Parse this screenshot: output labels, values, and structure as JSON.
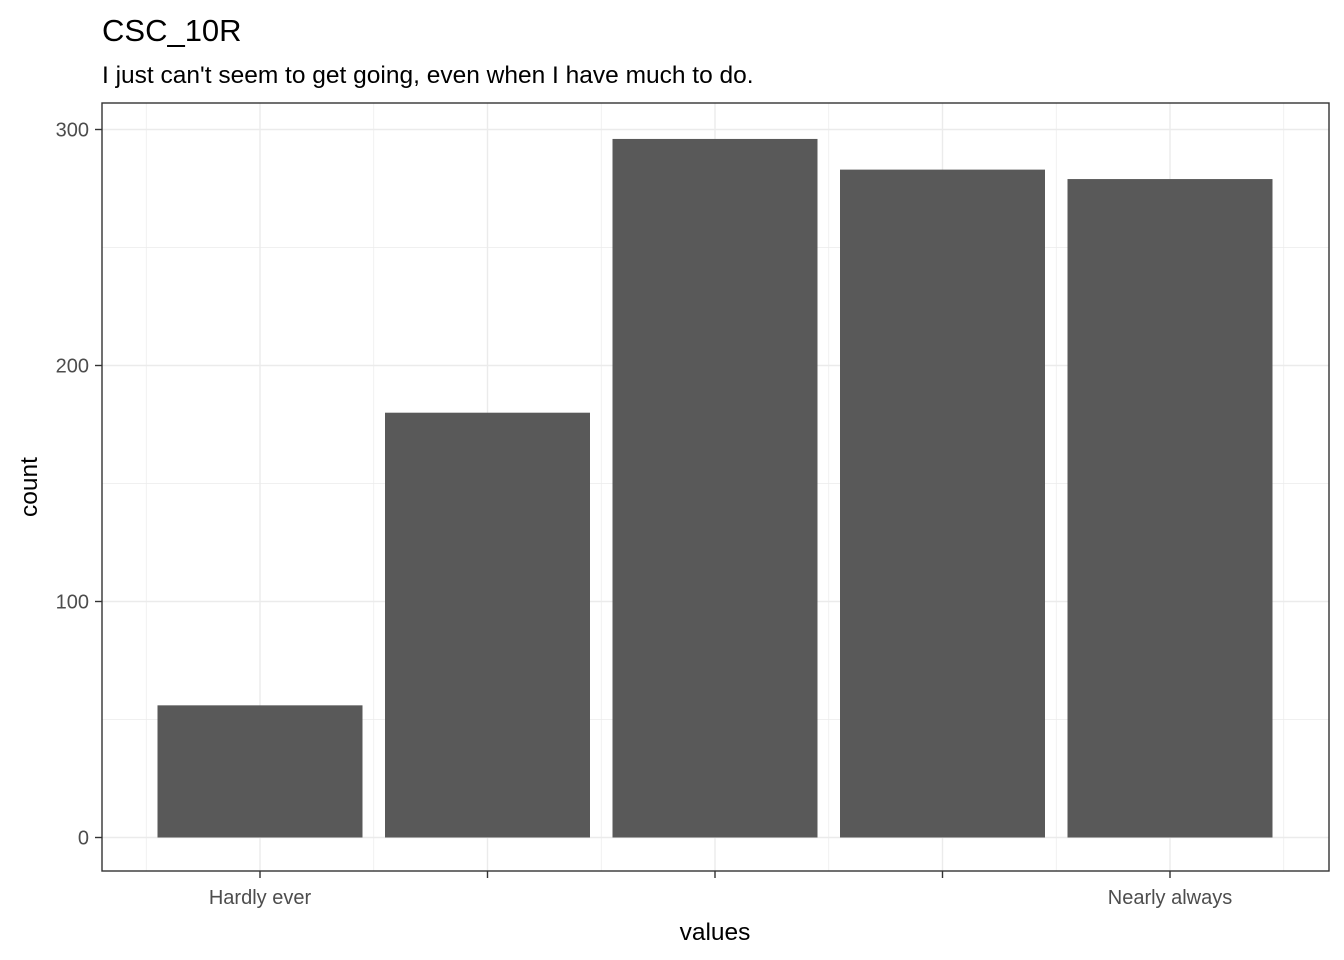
{
  "chart_data": {
    "type": "bar",
    "title": "CSC_10R",
    "subtitle": "I just can't seem to get going, even when I have much to do.",
    "xlabel": "values",
    "ylabel": "count",
    "categories": [
      "Hardly ever",
      "",
      "",
      "",
      "Nearly always"
    ],
    "values": [
      56,
      180,
      296,
      283,
      279
    ],
    "ylim": [
      0,
      310
    ],
    "yticks": [
      0,
      100,
      200,
      300
    ],
    "ytick_labels": [
      "0",
      "100",
      "200",
      "300"
    ],
    "grid": true,
    "bar_color": "#595959",
    "legend": "none"
  }
}
